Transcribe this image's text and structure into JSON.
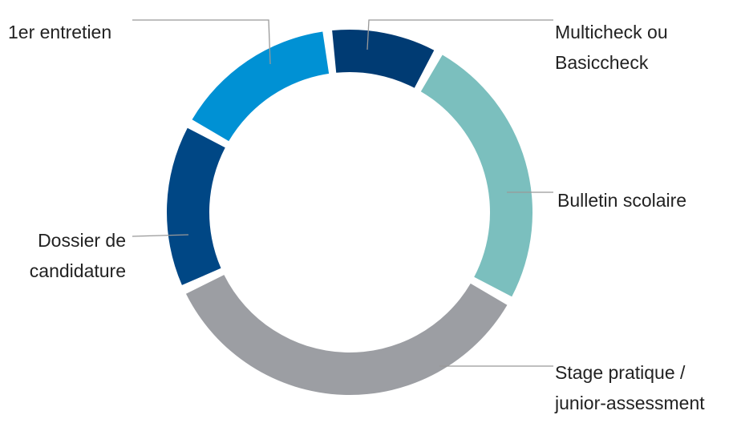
{
  "chart_data": {
    "type": "donut",
    "categories": [
      "Multicheck ou\nBasiccheck",
      "Bulletin scolaire",
      "Stage pratique /\njunior-assessment",
      "Dossier de\ncandidature",
      "1er entretien"
    ],
    "values": [
      10,
      25,
      35,
      15,
      15
    ],
    "colors": [
      "#003b73",
      "#7bbfbe",
      "#9c9ea3",
      "#004785",
      "#0091d4"
    ]
  }
}
